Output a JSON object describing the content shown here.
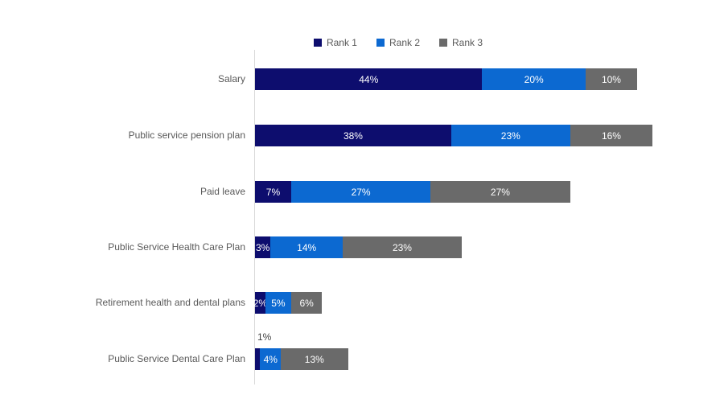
{
  "chart_data": {
    "type": "bar",
    "variant": "horizontal-stacked",
    "title": "",
    "unit": "%",
    "legend_position": "top-center",
    "legend": [
      "Rank 1",
      "Rank 2",
      "Rank 3"
    ],
    "colors": [
      "#0d0d6e",
      "#0c69d1",
      "#6a6a6a"
    ],
    "categories": [
      "Salary",
      "Public service pension plan",
      "Paid leave",
      "Public Service Health Care Plan",
      "Retirement health and dental plans",
      "Public Service Dental Care Plan"
    ],
    "series": [
      {
        "name": "Rank 1",
        "values": [
          44,
          38,
          7,
          3,
          2,
          1
        ]
      },
      {
        "name": "Rank 2",
        "values": [
          20,
          23,
          27,
          14,
          5,
          4
        ]
      },
      {
        "name": "Rank 3",
        "values": [
          10,
          16,
          27,
          23,
          6,
          13
        ]
      }
    ],
    "data_labels": {
      "inside_color": "#ffffff",
      "outside_color": "#404040"
    },
    "outside_labels": [
      {
        "category_index": 5,
        "series_index": 0,
        "text": "1%"
      }
    ],
    "axis": {
      "x_max_percent": 100,
      "gridlines": false,
      "baseline_color": "#d9d9d9"
    },
    "category_text_color": "#595959",
    "legend_text_color": "#595959"
  }
}
